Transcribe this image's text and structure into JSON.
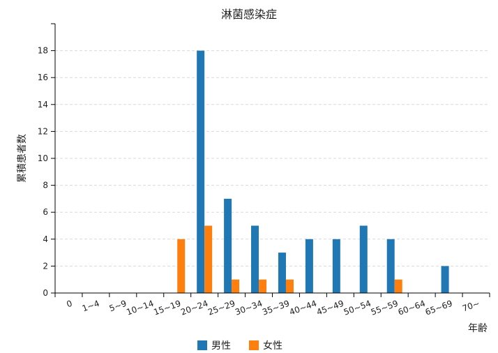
{
  "chart_data": {
    "type": "bar",
    "title": "淋菌感染症",
    "xlabel": "年齢",
    "ylabel": "累積患者数",
    "categories": [
      "0",
      "1~4",
      "5~9",
      "10~14",
      "15~19",
      "20~24",
      "25~29",
      "30~34",
      "35~39",
      "40~44",
      "45~49",
      "50~54",
      "55~59",
      "60~64",
      "65~69",
      "70~"
    ],
    "series": [
      {
        "name": "男性",
        "color": "#1f77b4",
        "values": [
          0,
          0,
          0,
          0,
          0,
          18,
          7,
          5,
          3,
          4,
          4,
          5,
          4,
          0,
          2,
          0
        ]
      },
      {
        "name": "女性",
        "color": "#ff7f0e",
        "values": [
          0,
          0,
          0,
          0,
          4,
          5,
          1,
          1,
          1,
          0,
          0,
          0,
          1,
          0,
          0,
          0
        ]
      }
    ],
    "ylim": [
      0,
      20
    ],
    "yticks": [
      0,
      2,
      4,
      6,
      8,
      10,
      12,
      14,
      16,
      18
    ],
    "grid": true,
    "legend_position": "bottom"
  }
}
